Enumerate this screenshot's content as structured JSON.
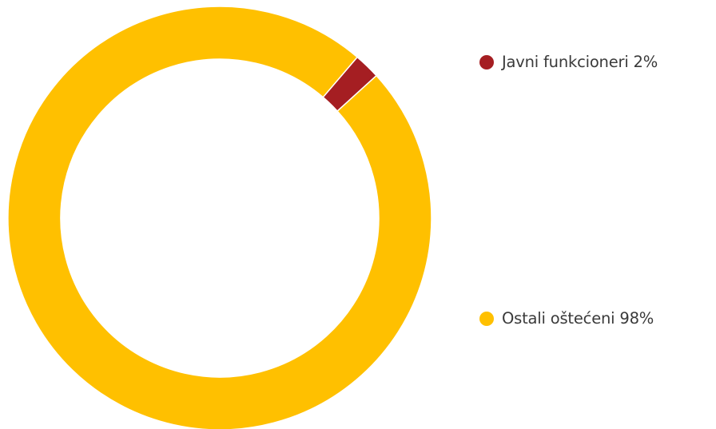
{
  "chart_data": {
    "type": "pie",
    "title": "",
    "donut": true,
    "legend_placement": "right",
    "categories": [
      "Javni funkcioneri",
      "Ostali oštećeni"
    ],
    "values": [
      2,
      98
    ],
    "unit": "%",
    "colors": [
      "#a51e22",
      "#ffc000"
    ],
    "legend": [
      {
        "label": "Javni funkcioneri 2%",
        "color": "#a51e22"
      },
      {
        "label": "Ostali oštećeni 98%",
        "color": "#ffc000"
      }
    ]
  }
}
